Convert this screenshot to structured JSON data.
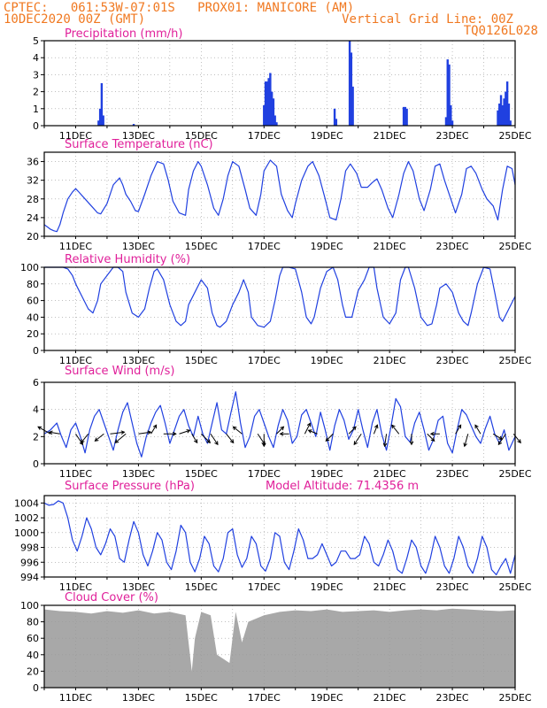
{
  "header": {
    "line1": "CPTEC:   061:53W-07:01S   PROX01: MANICORE (AM)",
    "line2_left": "10DEC2020 00Z (GMT)",
    "line2_right": "Vertical Grid Line: 00Z",
    "line3_right": "TQ0126L028"
  },
  "colors": {
    "header": "#f07820",
    "title": "#e0209a",
    "line": "#2040e0",
    "bar": "#2040e0",
    "cloud": "#a8a8a8",
    "arrow": "#000000",
    "grid": "#999999"
  },
  "chart_data": [
    {
      "type": "bar",
      "title": "Precipitation (mm/h)",
      "ylim": [
        0,
        5
      ],
      "yticks": [
        0,
        1,
        2,
        3,
        4,
        5
      ],
      "xticks": [
        "11DEC",
        "13DEC",
        "15DEC",
        "17DEC",
        "19DEC",
        "21DEC",
        "23DEC",
        "25DEC"
      ],
      "x_unit": "days since 10DEC2020 00Z",
      "x": [
        1.73,
        1.78,
        1.83,
        1.88,
        2.85,
        7.0,
        7.05,
        7.1,
        7.15,
        7.2,
        7.25,
        7.3,
        7.35,
        7.4,
        9.25,
        9.3,
        9.73,
        9.78,
        9.83,
        11.45,
        11.5,
        11.55,
        12.8,
        12.85,
        12.9,
        12.95,
        13.0,
        14.45,
        14.5,
        14.55,
        14.6,
        14.65,
        14.7,
        14.75,
        14.8,
        14.85
      ],
      "values": [
        0.3,
        1.0,
        2.5,
        0.6,
        0.1,
        1.2,
        2.6,
        2.6,
        2.8,
        3.1,
        2.0,
        1.6,
        0.6,
        0.2,
        1.0,
        0.4,
        5.0,
        4.3,
        2.3,
        1.1,
        1.1,
        1.0,
        0.5,
        3.9,
        3.6,
        1.2,
        0.3,
        0.9,
        1.3,
        1.8,
        1.2,
        1.6,
        2.0,
        2.6,
        1.3,
        0.3
      ]
    },
    {
      "type": "line",
      "title": "Surface Temperature (nC)",
      "ylim": [
        20,
        38
      ],
      "yticks": [
        20,
        24,
        28,
        32,
        36
      ],
      "xticks": [
        "11DEC",
        "13DEC",
        "15DEC",
        "17DEC",
        "19DEC",
        "21DEC",
        "23DEC",
        "25DEC"
      ],
      "x_unit": "days since 10DEC2020 00Z",
      "x": [
        0,
        0.1,
        0.2,
        0.3,
        0.4,
        0.5,
        0.6,
        0.75,
        0.9,
        1.0,
        1.1,
        1.3,
        1.5,
        1.7,
        1.8,
        2.0,
        2.2,
        2.4,
        2.5,
        2.6,
        2.75,
        2.9,
        3.0,
        3.2,
        3.4,
        3.6,
        3.8,
        3.95,
        4.1,
        4.3,
        4.5,
        4.6,
        4.75,
        4.9,
        5.0,
        5.2,
        5.4,
        5.55,
        5.7,
        5.85,
        6.0,
        6.2,
        6.4,
        6.55,
        6.75,
        6.9,
        7.0,
        7.2,
        7.4,
        7.55,
        7.75,
        7.9,
        8.0,
        8.2,
        8.4,
        8.55,
        8.75,
        8.95,
        9.1,
        9.3,
        9.45,
        9.6,
        9.75,
        9.95,
        10.1,
        10.3,
        10.45,
        10.6,
        10.75,
        10.95,
        11.1,
        11.3,
        11.45,
        11.6,
        11.75,
        11.95,
        12.1,
        12.3,
        12.45,
        12.6,
        12.75,
        12.95,
        13.1,
        13.3,
        13.45,
        13.6,
        13.75,
        13.95,
        14.1,
        14.3,
        14.45,
        14.6,
        14.75,
        14.9,
        15.0
      ],
      "values": [
        22.5,
        22.0,
        21.5,
        21.2,
        21.0,
        22.5,
        25.0,
        28.0,
        29.5,
        30.2,
        29.5,
        28.0,
        26.5,
        25.0,
        24.8,
        27.0,
        31.0,
        32.5,
        31.0,
        29.0,
        27.5,
        25.5,
        25.3,
        29.0,
        33.0,
        36.0,
        35.5,
        32.0,
        27.5,
        25.0,
        24.5,
        30.0,
        34.0,
        36.0,
        35.0,
        31.0,
        26.0,
        24.5,
        28.0,
        33.0,
        36.0,
        35.0,
        30.0,
        26.0,
        24.5,
        29.0,
        34.0,
        36.3,
        35.0,
        29.0,
        25.5,
        24.0,
        27.0,
        32.0,
        35.0,
        36.0,
        33.0,
        28.0,
        24.0,
        23.5,
        28.0,
        34.0,
        35.5,
        33.5,
        30.5,
        30.5,
        31.5,
        32.3,
        30.0,
        26.0,
        24.0,
        29.0,
        33.5,
        36.0,
        34.0,
        28.0,
        25.5,
        30.0,
        35.0,
        35.5,
        32.0,
        28.0,
        25.0,
        29.0,
        34.5,
        35.0,
        33.5,
        30.0,
        28.0,
        26.5,
        23.5,
        30.0,
        35.0,
        34.5,
        31.0
      ]
    },
    {
      "type": "line",
      "title": "Relative Humidity (%)",
      "ylim": [
        0,
        100
      ],
      "yticks": [
        0,
        20,
        40,
        60,
        80,
        100
      ],
      "xticks": [
        "11DEC",
        "13DEC",
        "15DEC",
        "17DEC",
        "19DEC",
        "21DEC",
        "23DEC",
        "25DEC"
      ],
      "x_unit": "days since 10DEC2020 00Z",
      "x": [
        0,
        0.2,
        0.4,
        0.6,
        0.75,
        0.9,
        1.0,
        1.2,
        1.4,
        1.55,
        1.7,
        1.8,
        2.0,
        2.2,
        2.35,
        2.5,
        2.6,
        2.8,
        3.0,
        3.2,
        3.35,
        3.5,
        3.6,
        3.8,
        4.0,
        4.2,
        4.35,
        4.5,
        4.6,
        4.8,
        5.0,
        5.2,
        5.35,
        5.5,
        5.6,
        5.8,
        6.0,
        6.2,
        6.35,
        6.5,
        6.6,
        6.8,
        7.0,
        7.2,
        7.35,
        7.5,
        7.6,
        7.8,
        8.0,
        8.2,
        8.35,
        8.5,
        8.6,
        8.8,
        9.0,
        9.2,
        9.35,
        9.5,
        9.6,
        9.8,
        10.0,
        10.2,
        10.35,
        10.5,
        10.6,
        10.8,
        11.0,
        11.2,
        11.35,
        11.5,
        11.6,
        11.8,
        12.0,
        12.2,
        12.35,
        12.5,
        12.6,
        12.8,
        13.0,
        13.2,
        13.35,
        13.5,
        13.6,
        13.8,
        14.0,
        14.2,
        14.35,
        14.5,
        14.6,
        14.8,
        15.0
      ],
      "values": [
        100,
        100,
        100,
        100,
        98,
        90,
        80,
        65,
        50,
        45,
        60,
        80,
        90,
        100,
        100,
        95,
        70,
        45,
        40,
        50,
        75,
        95,
        98,
        85,
        55,
        35,
        30,
        35,
        55,
        70,
        85,
        75,
        45,
        30,
        28,
        35,
        55,
        70,
        85,
        70,
        40,
        30,
        28,
        35,
        60,
        90,
        100,
        100,
        98,
        70,
        40,
        32,
        40,
        75,
        95,
        100,
        85,
        55,
        40,
        40,
        72,
        85,
        100,
        100,
        75,
        40,
        32,
        45,
        85,
        100,
        100,
        75,
        40,
        30,
        32,
        55,
        75,
        80,
        70,
        45,
        35,
        30,
        45,
        80,
        100,
        98,
        70,
        40,
        35,
        50,
        65
      ]
    },
    {
      "type": "line",
      "title": "Surface Wind (m/s)",
      "ylim": [
        0,
        6
      ],
      "yticks": [
        0,
        2,
        4,
        6
      ],
      "xticks": [
        "11DEC",
        "13DEC",
        "15DEC",
        "17DEC",
        "19DEC",
        "21DEC",
        "23DEC",
        "25DEC"
      ],
      "x_unit": "days since 10DEC2020 00Z",
      "x": [
        0,
        0.2,
        0.4,
        0.55,
        0.7,
        0.85,
        1.0,
        1.15,
        1.3,
        1.45,
        1.6,
        1.75,
        1.9,
        2.05,
        2.2,
        2.35,
        2.5,
        2.65,
        2.8,
        2.95,
        3.1,
        3.25,
        3.4,
        3.55,
        3.7,
        3.85,
        4.0,
        4.15,
        4.3,
        4.45,
        4.6,
        4.75,
        4.9,
        5.05,
        5.2,
        5.35,
        5.5,
        5.65,
        5.8,
        5.95,
        6.1,
        6.25,
        6.4,
        6.55,
        6.7,
        6.85,
        7.0,
        7.15,
        7.3,
        7.45,
        7.6,
        7.75,
        7.9,
        8.05,
        8.2,
        8.35,
        8.5,
        8.65,
        8.8,
        8.95,
        9.1,
        9.25,
        9.4,
        9.55,
        9.7,
        9.85,
        10.0,
        10.15,
        10.3,
        10.45,
        10.6,
        10.75,
        10.9,
        11.05,
        11.2,
        11.35,
        11.5,
        11.65,
        11.8,
        11.95,
        12.1,
        12.25,
        12.4,
        12.55,
        12.7,
        12.85,
        13.0,
        13.15,
        13.3,
        13.45,
        13.6,
        13.75,
        13.9,
        14.05,
        14.2,
        14.35,
        14.5,
        14.65,
        14.8,
        15.0
      ],
      "values": [
        2.2,
        2.5,
        3.0,
        2.0,
        1.2,
        2.5,
        3.0,
        2.0,
        0.8,
        2.5,
        3.5,
        4.0,
        3.0,
        2.0,
        1.0,
        2.5,
        3.8,
        4.5,
        3.0,
        1.5,
        0.5,
        2.0,
        3.0,
        3.8,
        4.3,
        3.0,
        1.5,
        2.5,
        3.5,
        4.0,
        2.8,
        2.0,
        3.5,
        2.2,
        1.5,
        3.0,
        4.5,
        2.5,
        2.2,
        3.8,
        5.3,
        3.0,
        1.2,
        2.0,
        3.5,
        4.0,
        3.0,
        2.0,
        1.2,
        2.8,
        4.0,
        3.2,
        1.5,
        2.0,
        3.6,
        4.0,
        3.0,
        2.0,
        3.8,
        2.5,
        1.0,
        2.8,
        4.0,
        3.2,
        1.8,
        2.5,
        4.0,
        2.5,
        1.2,
        3.0,
        4.0,
        2.2,
        1.0,
        2.8,
        4.8,
        4.2,
        2.0,
        1.6,
        3.0,
        3.8,
        2.5,
        1.0,
        1.8,
        3.2,
        3.5,
        1.5,
        0.8,
        2.5,
        4.0,
        3.6,
        2.8,
        2.0,
        1.5,
        2.6,
        3.5,
        2.2,
        1.5,
        2.5,
        1.0,
        2.0
      ],
      "arrows": [
        {
          "x": 0.2,
          "dx": -14,
          "dy": -8
        },
        {
          "x": 0.5,
          "dx": -12,
          "dy": -2
        },
        {
          "x": 1.0,
          "dx": 8,
          "dy": 12
        },
        {
          "x": 1.4,
          "dx": -8,
          "dy": 10
        },
        {
          "x": 1.9,
          "dx": -10,
          "dy": 8
        },
        {
          "x": 2.1,
          "dx": 16,
          "dy": -2
        },
        {
          "x": 2.6,
          "dx": -12,
          "dy": 10
        },
        {
          "x": 3.0,
          "dx": 14,
          "dy": -2
        },
        {
          "x": 3.4,
          "dx": 6,
          "dy": -10
        },
        {
          "x": 3.8,
          "dx": 14,
          "dy": 0
        },
        {
          "x": 4.3,
          "dx": 12,
          "dy": -4
        },
        {
          "x": 4.7,
          "dx": 6,
          "dy": 10
        },
        {
          "x": 5.0,
          "dx": 10,
          "dy": 10
        },
        {
          "x": 5.3,
          "dx": 8,
          "dy": 12
        },
        {
          "x": 5.8,
          "dx": 8,
          "dy": 10
        },
        {
          "x": 6.3,
          "dx": -10,
          "dy": -8
        },
        {
          "x": 6.8,
          "dx": 8,
          "dy": 12
        },
        {
          "x": 7.0,
          "dx": 0,
          "dy": 14
        },
        {
          "x": 7.4,
          "dx": 8,
          "dy": -8
        },
        {
          "x": 7.8,
          "dx": -10,
          "dy": 0
        },
        {
          "x": 8.3,
          "dx": 6,
          "dy": -12
        },
        {
          "x": 8.7,
          "dx": -10,
          "dy": -4
        },
        {
          "x": 9.2,
          "dx": -8,
          "dy": 8
        },
        {
          "x": 9.7,
          "dx": 8,
          "dy": -8
        },
        {
          "x": 10.1,
          "dx": -8,
          "dy": 12
        },
        {
          "x": 10.5,
          "dx": 4,
          "dy": -10
        },
        {
          "x": 10.9,
          "dx": -2,
          "dy": 14
        },
        {
          "x": 11.3,
          "dx": -8,
          "dy": -10
        },
        {
          "x": 11.7,
          "dx": 0,
          "dy": 12
        },
        {
          "x": 12.2,
          "dx": 8,
          "dy": 8
        },
        {
          "x": 12.6,
          "dx": -10,
          "dy": 0
        },
        {
          "x": 13.1,
          "dx": 6,
          "dy": -10
        },
        {
          "x": 13.5,
          "dx": -4,
          "dy": 14
        },
        {
          "x": 13.9,
          "dx": -6,
          "dy": -10
        },
        {
          "x": 14.3,
          "dx": 10,
          "dy": 6
        },
        {
          "x": 14.7,
          "dx": -8,
          "dy": 12
        },
        {
          "x": 14.95,
          "dx": 8,
          "dy": 10
        }
      ]
    },
    {
      "type": "line",
      "title": "Surface Pressure (hPa)",
      "subtitle": "Model Altitude: 71.4356 m",
      "ylim": [
        994,
        1005
      ],
      "yticks": [
        994,
        996,
        998,
        1000,
        1002,
        1004
      ],
      "xticks": [
        "11DEC",
        "13DEC",
        "15DEC",
        "17DEC",
        "19DEC",
        "21DEC",
        "23DEC",
        "25DEC"
      ],
      "x_unit": "days since 10DEC2020 00Z",
      "x": [
        0,
        0.15,
        0.3,
        0.45,
        0.6,
        0.75,
        0.9,
        1.05,
        1.2,
        1.35,
        1.5,
        1.65,
        1.8,
        1.95,
        2.1,
        2.25,
        2.4,
        2.55,
        2.7,
        2.85,
        3.0,
        3.15,
        3.3,
        3.45,
        3.6,
        3.75,
        3.9,
        4.05,
        4.2,
        4.35,
        4.5,
        4.65,
        4.8,
        4.95,
        5.1,
        5.25,
        5.4,
        5.55,
        5.7,
        5.85,
        6.0,
        6.15,
        6.3,
        6.45,
        6.6,
        6.75,
        6.9,
        7.05,
        7.2,
        7.35,
        7.5,
        7.65,
        7.8,
        7.95,
        8.1,
        8.25,
        8.4,
        8.55,
        8.7,
        8.85,
        9.0,
        9.15,
        9.3,
        9.45,
        9.6,
        9.75,
        9.9,
        10.05,
        10.2,
        10.35,
        10.5,
        10.65,
        10.8,
        10.95,
        11.1,
        11.25,
        11.4,
        11.55,
        11.7,
        11.85,
        12.0,
        12.15,
        12.3,
        12.45,
        12.6,
        12.75,
        12.9,
        13.05,
        13.2,
        13.35,
        13.5,
        13.65,
        13.8,
        13.95,
        14.1,
        14.25,
        14.4,
        14.55,
        14.7,
        14.85,
        15.0
      ],
      "values": [
        1004.0,
        1003.7,
        1003.8,
        1004.3,
        1004.0,
        1002.0,
        999.0,
        997.5,
        999.5,
        1002.0,
        1000.5,
        998.0,
        997.0,
        998.5,
        1000.5,
        999.5,
        996.5,
        996.0,
        999.0,
        1001.5,
        1000.0,
        997.0,
        995.5,
        997.5,
        1000.0,
        999.0,
        996.0,
        995.0,
        997.5,
        1001.0,
        1000.0,
        996.0,
        994.7,
        996.5,
        999.5,
        998.5,
        995.5,
        994.7,
        996.5,
        1000.0,
        1000.5,
        997.0,
        995.3,
        996.5,
        999.5,
        998.5,
        995.5,
        994.8,
        996.5,
        1000.0,
        999.5,
        996.0,
        995.0,
        997.5,
        1000.5,
        999.0,
        996.5,
        996.5,
        997.0,
        998.5,
        997.0,
        995.5,
        996.0,
        997.5,
        997.5,
        996.5,
        996.5,
        997.0,
        999.5,
        998.5,
        996.0,
        995.5,
        997.0,
        999.0,
        997.5,
        995.0,
        994.5,
        996.5,
        999.0,
        998.0,
        995.5,
        994.5,
        996.5,
        999.5,
        998.0,
        995.5,
        994.5,
        996.5,
        999.5,
        998.0,
        995.5,
        994.5,
        996.5,
        999.5,
        998.0,
        995.0,
        994.3,
        995.5,
        996.5,
        994.5,
        997.0
      ]
    },
    {
      "type": "area",
      "title": "Cloud Cover (%)",
      "ylim": [
        0,
        100
      ],
      "yticks": [
        0,
        20,
        40,
        60,
        80,
        100
      ],
      "xticks": [
        "11DEC",
        "13DEC",
        "15DEC",
        "17DEC",
        "19DEC",
        "21DEC",
        "23DEC",
        "25DEC"
      ],
      "x_unit": "days since 10DEC2020 00Z",
      "x": [
        0,
        0.5,
        1.0,
        1.5,
        2.0,
        2.5,
        3.0,
        3.5,
        4.0,
        4.5,
        4.7,
        4.8,
        5.0,
        5.3,
        5.5,
        5.9,
        6.1,
        6.3,
        6.5,
        7.0,
        7.5,
        8.0,
        8.5,
        9.0,
        9.5,
        10.0,
        10.5,
        11.0,
        11.5,
        12.0,
        12.5,
        13.0,
        13.5,
        14.0,
        14.5,
        15.0
      ],
      "values": [
        95,
        93,
        92,
        90,
        93,
        91,
        94,
        90,
        92,
        88,
        20,
        60,
        92,
        88,
        40,
        30,
        92,
        55,
        80,
        88,
        92,
        94,
        93,
        95,
        92,
        93,
        94,
        92,
        94,
        95,
        94,
        96,
        95,
        94,
        93,
        94
      ]
    }
  ]
}
